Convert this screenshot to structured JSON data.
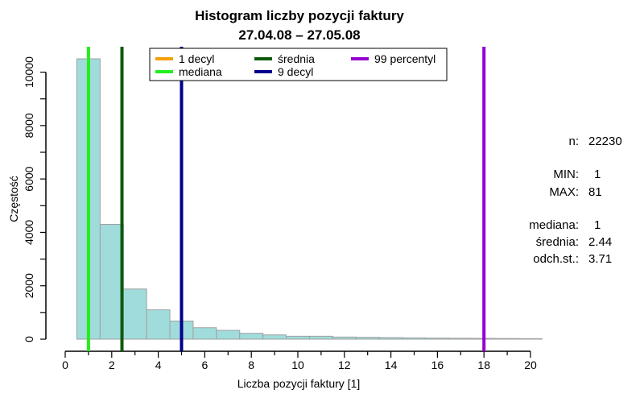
{
  "title_line1": "Histogram liczby pozycji faktury",
  "title_line2": "27.04.08 – 27.05.08",
  "chart_data": {
    "type": "bar",
    "xlabel": "Liczba pozycji faktury [1]",
    "ylabel": "Częstość",
    "xlim": [
      0,
      20
    ],
    "ylim": [
      0,
      10500
    ],
    "x_ticks": [
      "0",
      "2",
      "4",
      "6",
      "8",
      "10",
      "12",
      "14",
      "16",
      "18",
      "20"
    ],
    "y_ticks": [
      "0",
      "2000",
      "4000",
      "6000",
      "8000",
      "10000"
    ],
    "bins": [
      {
        "from": 0.5,
        "to": 1.5,
        "count": 10500
      },
      {
        "from": 1.5,
        "to": 2.5,
        "count": 4300
      },
      {
        "from": 2.5,
        "to": 3.5,
        "count": 1880
      },
      {
        "from": 3.5,
        "to": 4.5,
        "count": 1100
      },
      {
        "from": 4.5,
        "to": 5.5,
        "count": 680
      },
      {
        "from": 5.5,
        "to": 6.5,
        "count": 430
      },
      {
        "from": 6.5,
        "to": 7.5,
        "count": 330
      },
      {
        "from": 7.5,
        "to": 8.5,
        "count": 220
      },
      {
        "from": 8.5,
        "to": 9.5,
        "count": 160
      },
      {
        "from": 9.5,
        "to": 10.5,
        "count": 110
      },
      {
        "from": 10.5,
        "to": 11.5,
        "count": 110
      },
      {
        "from": 11.5,
        "to": 12.5,
        "count": 80
      },
      {
        "from": 12.5,
        "to": 13.5,
        "count": 70
      },
      {
        "from": 13.5,
        "to": 14.5,
        "count": 60
      },
      {
        "from": 14.5,
        "to": 15.5,
        "count": 50
      },
      {
        "from": 15.5,
        "to": 16.5,
        "count": 40
      },
      {
        "from": 16.5,
        "to": 17.5,
        "count": 35
      },
      {
        "from": 17.5,
        "to": 18.5,
        "count": 30
      },
      {
        "from": 18.5,
        "to": 19.5,
        "count": 25
      },
      {
        "from": 19.5,
        "to": 20.5,
        "count": 20
      }
    ],
    "vlines": [
      {
        "name": "1 decyl",
        "x": 1,
        "color": "#f5a000"
      },
      {
        "name": "mediana",
        "x": 1,
        "color": "#22ee22"
      },
      {
        "name": "średnia",
        "x": 2.44,
        "color": "#0d5a0d"
      },
      {
        "name": "9 decyl",
        "x": 5,
        "color": "#00008b"
      },
      {
        "name": "99 percentyl",
        "x": 18,
        "color": "#9400d3"
      }
    ],
    "legend": [
      {
        "label": "1 decyl",
        "color": "#f5a000"
      },
      {
        "label": "mediana",
        "color": "#22ee22"
      },
      {
        "label": "średnia",
        "color": "#0d5a0d"
      },
      {
        "label": "9 decyl",
        "color": "#00008b"
      },
      {
        "label": "99 percentyl",
        "color": "#9400d3"
      }
    ],
    "legend_position": "top",
    "bar_fill": "#a0dcdc",
    "bar_stroke": "#a0a0a0"
  },
  "stats": {
    "n_label": "n:",
    "n_value": "22230",
    "min_label": "MIN:",
    "min_value": "1",
    "max_label": "MAX:",
    "max_value": "81",
    "mediana_label": "mediana:",
    "mediana_value": "1",
    "srednia_label": "średnia:",
    "srednia_value": "2.44",
    "odch_label": "odch.st.:",
    "odch_value": "3.71"
  }
}
